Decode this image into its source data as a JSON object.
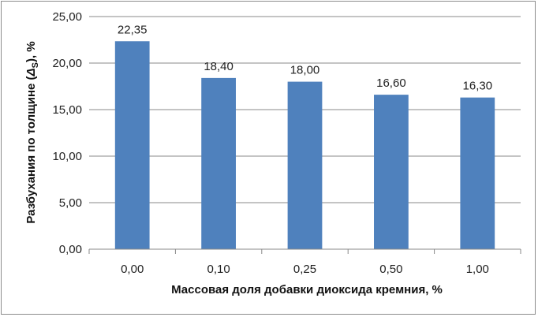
{
  "chart_data": {
    "type": "bar",
    "categories": [
      "0,00",
      "0,10",
      "0,25",
      "0,50",
      "1,00"
    ],
    "values": [
      22.35,
      18.4,
      18.0,
      16.6,
      16.3
    ],
    "data_labels": [
      "22,35",
      "18,40",
      "18,00",
      "16,60",
      "16,30"
    ],
    "xlabel": "Массовая доля добавки диоксида кремния, %",
    "ylabel": {
      "prefix": "Разбухания по толщине (",
      "symbol": "Δ",
      "subscript": "S",
      "suffix": "), %"
    },
    "ylim": [
      0,
      25
    ],
    "yticks": [
      "0,00",
      "5,00",
      "10,00",
      "15,00",
      "20,00",
      "25,00"
    ],
    "grid": true,
    "bar_color": "#4f81bd",
    "grid_color": "#888888"
  }
}
